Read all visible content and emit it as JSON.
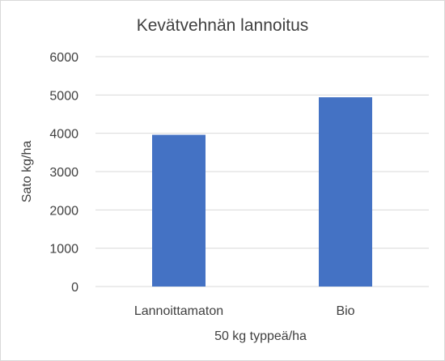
{
  "chart_data": {
    "type": "bar",
    "title": "Kevätvehnän lannoitus",
    "xlabel": "50 kg typpeä/ha",
    "ylabel": "Sato kg/ha",
    "categories": [
      "Lannoittamaton",
      "Bio"
    ],
    "values": [
      3960,
      4940
    ],
    "ylim": [
      0,
      6000
    ],
    "yticks": [
      "0",
      "1000",
      "2000",
      "3000",
      "4000",
      "5000",
      "6000"
    ],
    "grid": true,
    "legend": "none",
    "bar_color": "#4472C4"
  }
}
